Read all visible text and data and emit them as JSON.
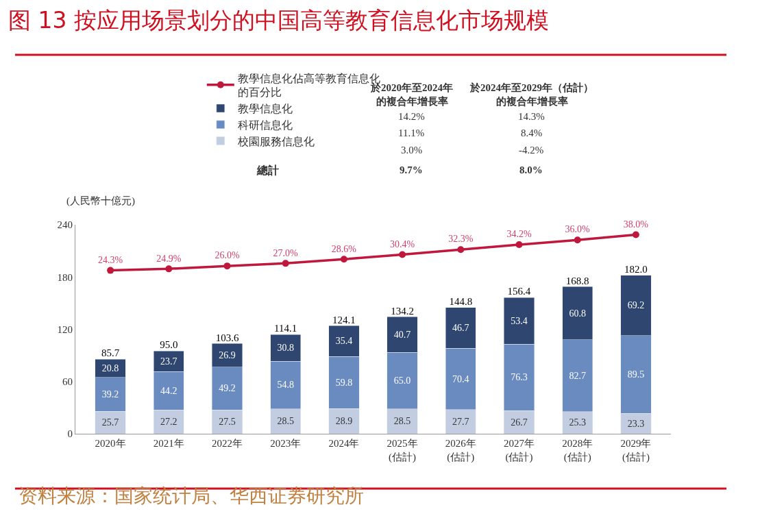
{
  "chart_data": {
    "type": "bar",
    "stacked": true,
    "title": "图 13 按应用场景划分的中国高等教育信息化市场规模",
    "ylabel": "(人民幣十億元)",
    "categories": [
      "2020年",
      "2021年",
      "2022年",
      "2023年",
      "2024年",
      "2025年\n(估計)",
      "2026年\n(估計)",
      "2027年\n(估計)",
      "2028年\n(估計)",
      "2029年\n(估計)"
    ],
    "series": [
      {
        "name": "校園服務信息化",
        "color": "#c3cde2",
        "values": [
          25.7,
          27.2,
          27.5,
          28.5,
          28.9,
          28.5,
          27.7,
          26.7,
          25.3,
          23.3
        ],
        "value_labels": [
          "25.7",
          "27.2",
          "27.5",
          "28.5",
          "28.9",
          "28.5",
          "27.7",
          "26.7",
          "25.3",
          "23.3"
        ]
      },
      {
        "name": "科研信息化",
        "color": "#6a8bc0",
        "values": [
          39.2,
          44.2,
          49.2,
          54.8,
          59.8,
          65.0,
          70.4,
          76.3,
          82.7,
          89.5
        ],
        "value_labels": [
          "39.2",
          "44.2",
          "49.2",
          "54.8",
          "59.8",
          "65.0",
          "70.4",
          "76.3",
          "82.7",
          "89.5"
        ]
      },
      {
        "name": "教學信息化",
        "color": "#2e4670",
        "values": [
          20.8,
          23.7,
          26.9,
          30.8,
          35.4,
          40.7,
          46.7,
          53.4,
          60.8,
          69.2
        ],
        "value_labels": [
          "20.8",
          "23.7",
          "26.9",
          "30.8",
          "35.4",
          "40.7",
          "46.7",
          "53.4",
          "60.8",
          "69.2"
        ]
      },
      {
        "name": "教學信息化佔高等教育信息化的百分比",
        "type": "line",
        "axis": "y2",
        "color": "#c0183c",
        "marker": "circle",
        "values": [
          24.3,
          24.9,
          26.0,
          27.0,
          28.6,
          30.4,
          32.3,
          34.2,
          36.0,
          38.0
        ],
        "value_labels": [
          "24.3%",
          "24.9%",
          "26.0%",
          "27.0%",
          "28.6%",
          "30.4%",
          "32.3%",
          "34.2%",
          "36.0%",
          "38.0%"
        ]
      }
    ],
    "totals": [
      "85.7",
      "95.0",
      "103.6",
      "114.1",
      "124.1",
      "134.2",
      "144.8",
      "156.4",
      "168.8",
      "182.0"
    ],
    "ylim": [
      0,
      240
    ],
    "yticks": [
      0,
      60,
      120,
      180,
      240
    ],
    "legend": "top",
    "annotations": [
      "於2020年至2024年的複合年增長率",
      "於2024年至2029年（估計）的複合年增長率",
      "14.2%",
      "14.3%",
      "11.1%",
      "8.4%",
      "3.0%",
      "-4.2%",
      "總計",
      "9.7%",
      "8.0%",
      "资料来源：国家统计局、华西证券研究所"
    ]
  }
}
